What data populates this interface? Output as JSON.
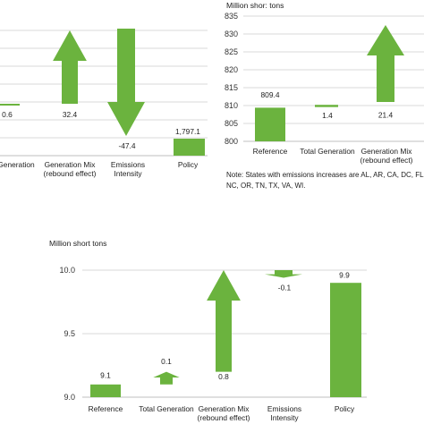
{
  "chart_data": [
    {
      "type": "bar",
      "subtype": "waterfall",
      "panel": "top-left",
      "categories": [
        "Generation",
        "Generation Mix\n(rebound effect)",
        "Emissions\nIntensity",
        "Policy"
      ],
      "values": [
        0.6,
        32.4,
        -47.4,
        1797.1
      ],
      "value_labels": [
        "0.6",
        "32.4",
        "-47.4",
        "1,797.1"
      ],
      "grid": true
    },
    {
      "type": "bar",
      "subtype": "waterfall",
      "panel": "top-right",
      "ylabel": "Million shor: tons",
      "categories": [
        "Reference",
        "Total Generation",
        "Generation Mix\n(rebound effect)"
      ],
      "values": [
        809.4,
        1.4,
        21.4
      ],
      "value_labels": [
        "809.4",
        "1.4",
        "21.4"
      ],
      "yticks": [
        "800",
        "805",
        "810",
        "815",
        "820",
        "825",
        "830",
        "835"
      ],
      "ylim": [
        800,
        835
      ],
      "grid": true,
      "note_lines": [
        "Note: States with emissions increases are AL, AR, CA, DC, FL, G",
        "NC, OR, TN, TX, VA, WI."
      ]
    },
    {
      "type": "bar",
      "subtype": "waterfall",
      "panel": "bottom",
      "ylabel": "Million short tons",
      "categories": [
        "Reference",
        "Total Generation",
        "Generation Mix\n(rebound effect)",
        "Emissions\nIntensity",
        "Policy"
      ],
      "values": [
        9.1,
        0.1,
        0.8,
        -0.1,
        9.9
      ],
      "value_labels": [
        "9.1",
        "0.1",
        "0.8",
        "-0.1",
        "9.9"
      ],
      "yticks": [
        "9.0",
        "9.5",
        "10.0"
      ],
      "ylim": [
        9.0,
        10.0
      ],
      "grid": true
    }
  ],
  "colors": {
    "bar": "#6bb33e",
    "grid": "#d9d9d9",
    "axis": "#bfbfbf"
  }
}
